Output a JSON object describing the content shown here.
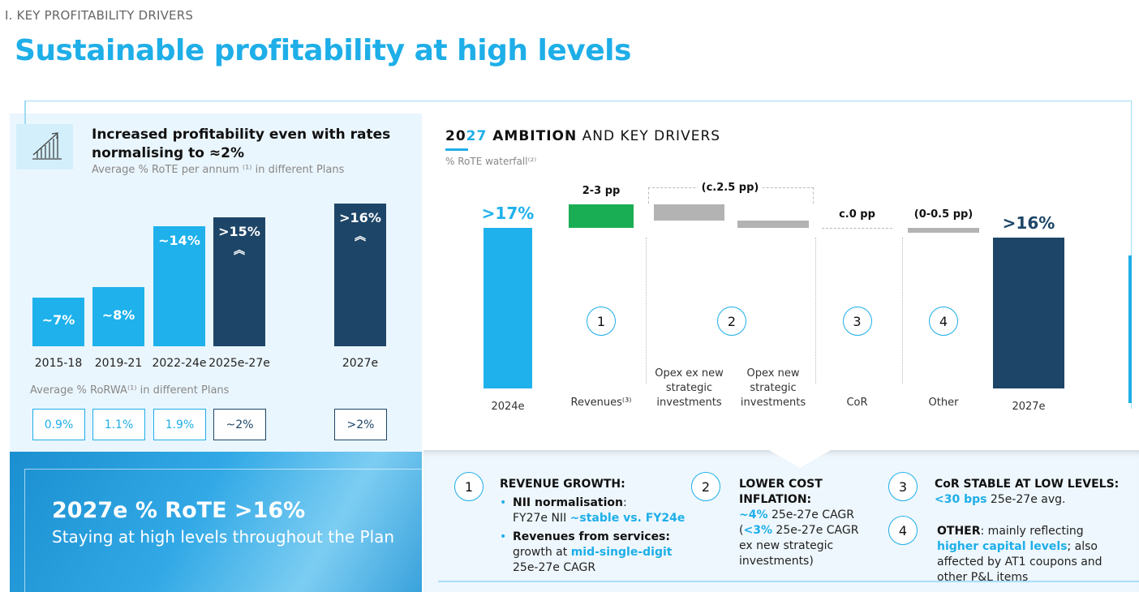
{
  "header": {
    "kicker": "I. KEY PROFITABILITY DRIVERS",
    "title": "Sustainable profitability at high levels"
  },
  "left_panel": {
    "icon": "growth-chart-icon",
    "heading_line1": "Increased profitability even with rates",
    "heading_line2": "normalising to ≈2%",
    "subtitle": "Average % RoTE per annum ⁽¹⁾ in different Plans",
    "rorwa_label": "Average % RoRWA⁽¹⁾ in different Plans",
    "rorwa": [
      "0.9%",
      "1.1%",
      "1.9%",
      "~2%",
      ">2%"
    ]
  },
  "banner": {
    "title": "2027e % RoTE >16%",
    "subtitle": "Staying at high levels throughout the Plan"
  },
  "right_panel": {
    "heading_pre": "20",
    "heading_accent": "27",
    "heading_bold": " AMBITION",
    "heading_rest": " AND KEY DRIVERS",
    "subtitle": "% RoTE waterfall⁽²⁾",
    "group_label": "(c.2.5 pp)"
  },
  "drivers": [
    {
      "num": "1",
      "title": "REVENUE GROWTH:",
      "b1_bold": "NII normalisation",
      "b1_rest": ":",
      "b1_line2": "FY27e NII ",
      "b1_hl": "~stable vs. FY24e",
      "b2_bold": "Revenues from services:",
      "b2_line2": "growth at ",
      "b2_hl": "mid-single-digit",
      "b2_line3": "25e-27e CAGR"
    },
    {
      "num": "2",
      "title_line1": "LOWER COST",
      "title_line2": "INFLATION:",
      "hl1": "~4%",
      "t1": " 25e-27e CAGR",
      "t2a": "(",
      "hl2": "<3%",
      "t2b": " 25e-27e CAGR",
      "t3": "ex new strategic",
      "t4": "investments)"
    },
    {
      "num": "3",
      "title": "CoR STABLE AT LOW LEVELS:",
      "hl": "<30 bps",
      "t": " 25e-27e avg."
    },
    {
      "num": "4",
      "title": "OTHER",
      "t1": ": mainly reflecting ",
      "hl": "higher capital levels",
      "t2": "; also affected by AT1 coupons and other P&L items"
    }
  ],
  "colors": {
    "light_blue": "#1eb1ec",
    "dark_blue": "#1d4567",
    "green": "#1aae54",
    "gray": "#b3b3b3"
  },
  "chart_data": [
    {
      "type": "bar",
      "title": "Average % RoTE per annum in different Plans",
      "categories": [
        "2015-18",
        "2019-21",
        "2022-24e",
        "2025e-27e",
        "2027e"
      ],
      "values": [
        7,
        8,
        14,
        15,
        16
      ],
      "labels": [
        "~7%",
        "~8%",
        "~14%",
        ">15%",
        ">16%"
      ],
      "colors": [
        "#1eb1ec",
        "#1eb1ec",
        "#1eb1ec",
        "#1d4567",
        "#1d4567"
      ],
      "rising_marker": [
        false,
        false,
        false,
        true,
        true
      ]
    },
    {
      "type": "waterfall",
      "title": "% RoTE waterfall",
      "categories": [
        "2024e",
        "Revenues⁽³⁾",
        "Opex ex new strategic investments",
        "Opex new strategic investments",
        "CoR",
        "Other",
        "2027e"
      ],
      "values": [
        17,
        2.5,
        -1.7,
        -0.8,
        0,
        -0.5,
        16
      ],
      "labels": [
        ">17%",
        "2-3 pp",
        "",
        "",
        "c.0 pp",
        "(0-0.5 pp)",
        ">16%"
      ],
      "driver_numbers": [
        "",
        "1",
        "2",
        "",
        "3",
        "4",
        ""
      ]
    }
  ]
}
